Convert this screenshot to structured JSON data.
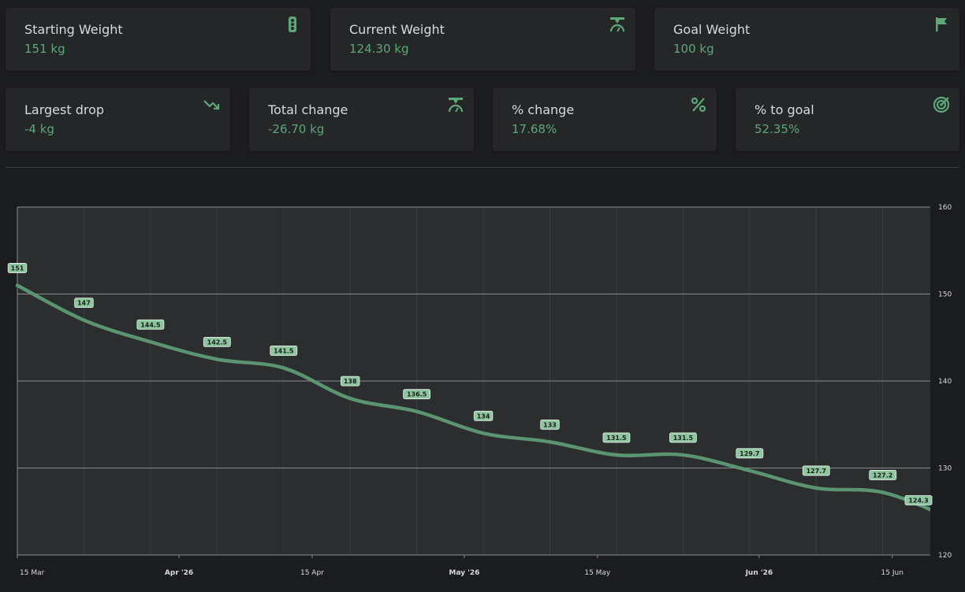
{
  "stats_row1": [
    {
      "label": "Starting Weight",
      "value": "151 kg",
      "icon": "traffic-light-icon"
    },
    {
      "label": "Current Weight",
      "value": "124.30 kg",
      "icon": "scale-icon"
    },
    {
      "label": "Goal Weight",
      "value": "100 kg",
      "icon": "flag-icon"
    }
  ],
  "stats_row2": [
    {
      "label": "Largest drop",
      "value": "-4 kg",
      "icon": "trending-down-icon"
    },
    {
      "label": "Total change",
      "value": "-26.70 kg",
      "icon": "scale-icon"
    },
    {
      "label": "% change",
      "value": "17.68%",
      "icon": "percent-icon"
    },
    {
      "label": "% to goal",
      "value": "52.35%",
      "icon": "target-icon"
    }
  ],
  "colors": {
    "accent": "#5ea878",
    "line": "#5b9470",
    "plot_bg": "#2b2d2f",
    "page_bg": "#1b1c1e",
    "card_bg": "#242628"
  },
  "chart_data": {
    "type": "line",
    "x_start": "2026-03-15",
    "x_end": "2026-06-19",
    "x_ticks": [
      {
        "date": "2026-03-15",
        "label": "15 Mar",
        "bold": false
      },
      {
        "date": "2026-04-01",
        "label": "Apr '26",
        "bold": true
      },
      {
        "date": "2026-04-15",
        "label": "15 Apr",
        "bold": false
      },
      {
        "date": "2026-05-01",
        "label": "May '26",
        "bold": true
      },
      {
        "date": "2026-05-15",
        "label": "15 May",
        "bold": false
      },
      {
        "date": "2026-06-01",
        "label": "Jun '26",
        "bold": true
      },
      {
        "date": "2026-06-15",
        "label": "15 Jun",
        "bold": false
      }
    ],
    "ylim": [
      120,
      160
    ],
    "y_ticks": [
      120,
      130,
      140,
      150,
      160
    ],
    "grid": true,
    "series": [
      {
        "points": [
          {
            "date": "2026-03-15",
            "value": 151,
            "label": "151"
          },
          {
            "date": "2026-03-22",
            "value": 147,
            "label": "147"
          },
          {
            "date": "2026-03-29",
            "value": 144.5,
            "label": "144.5"
          },
          {
            "date": "2026-04-05",
            "value": 142.5,
            "label": "142.5"
          },
          {
            "date": "2026-04-12",
            "value": 141.5,
            "label": "141.5"
          },
          {
            "date": "2026-04-19",
            "value": 138,
            "label": "138"
          },
          {
            "date": "2026-04-26",
            "value": 136.5,
            "label": "136.5"
          },
          {
            "date": "2026-05-03",
            "value": 134,
            "label": "134"
          },
          {
            "date": "2026-05-10",
            "value": 133,
            "label": "133"
          },
          {
            "date": "2026-05-17",
            "value": 131.5,
            "label": "131.5"
          },
          {
            "date": "2026-05-24",
            "value": 131.5,
            "label": "131.5"
          },
          {
            "date": "2026-05-31",
            "value": 129.7,
            "label": "129.7"
          },
          {
            "date": "2026-06-07",
            "value": 127.7,
            "label": "127.7"
          },
          {
            "date": "2026-06-14",
            "value": 127.2,
            "label": "127.2"
          },
          {
            "date": "2026-06-21",
            "value": 124.3,
            "label": "124.3"
          }
        ]
      }
    ]
  }
}
